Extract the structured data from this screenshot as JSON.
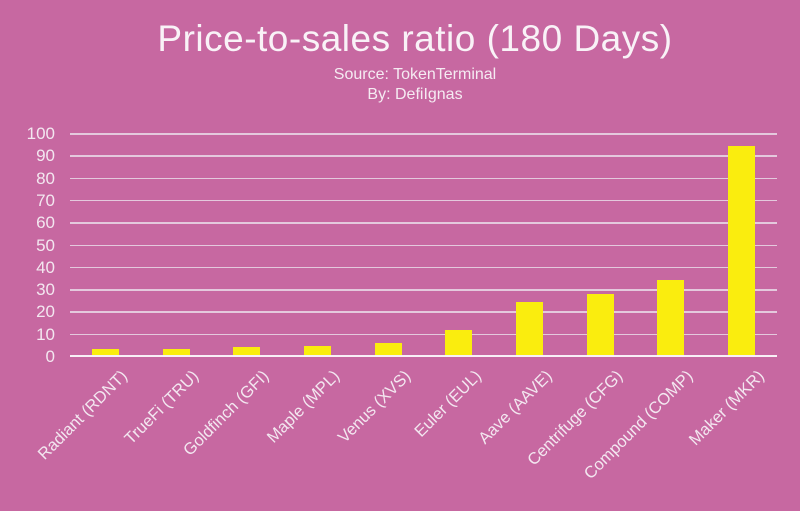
{
  "figure": {
    "title": "Price-to-sales ratio (180 Days)",
    "source_line": "Source: TokenTerminal",
    "byline": "By: DefiIgnas"
  },
  "chart_data": {
    "type": "bar",
    "title": "Price-to-sales ratio (180 Days)",
    "subtitle": "Source: TokenTerminal",
    "byline": "By: DefiIgnas",
    "categories": [
      "Radiant (RDNT)",
      "TrueFi (TRU)",
      "Goldfinch (GFI)",
      "Maple (MPL)",
      "Venus (XVS)",
      "Euler (EUL)",
      "Aave (AAVE)",
      "Centrifuge (CFG)",
      "Compound (COMP)",
      "Maker (MKR)"
    ],
    "values": [
      3,
      3,
      4,
      4.5,
      6,
      11.5,
      24,
      28,
      34,
      94
    ],
    "xlabel": "",
    "ylabel": "",
    "ylim": [
      0,
      100
    ],
    "yticks": [
      0,
      10,
      20,
      30,
      40,
      50,
      60,
      70,
      80,
      90,
      100
    ],
    "grid": true,
    "legend_position": "none",
    "x_tick_rotation_deg": 45,
    "colors": {
      "background": "#C768A1",
      "bar": "#FAED0E",
      "gridline": "#E4C9DD",
      "axis_line": "#F8F0F6",
      "text": "#F3E7F0"
    }
  }
}
